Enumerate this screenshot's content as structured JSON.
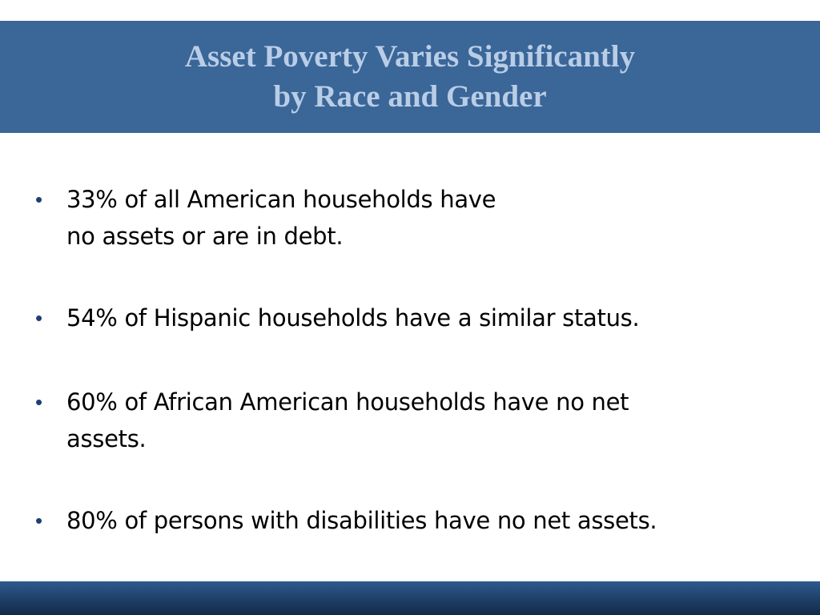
{
  "slide": {
    "title_lines": [
      "Asset Poverty Varies Significantly",
      "by Race and Gender"
    ],
    "bullet_symbol": "•",
    "bullets": [
      {
        "lines": [
          "33% of all American households have",
          "no assets or are in debt."
        ]
      },
      {
        "lines": [
          "54% of Hispanic households have a similar status."
        ]
      },
      {
        "lines": [
          "60% of African American households have no net",
          "assets."
        ]
      },
      {
        "lines": [
          "80% of persons with disabilities have no net assets."
        ]
      }
    ]
  },
  "colors": {
    "title_band": "#3a6698",
    "title_text": "#b9cde6",
    "bullet_dot": "#1f3e73",
    "body_text": "#000000",
    "footer_band": "#1d3c63"
  }
}
